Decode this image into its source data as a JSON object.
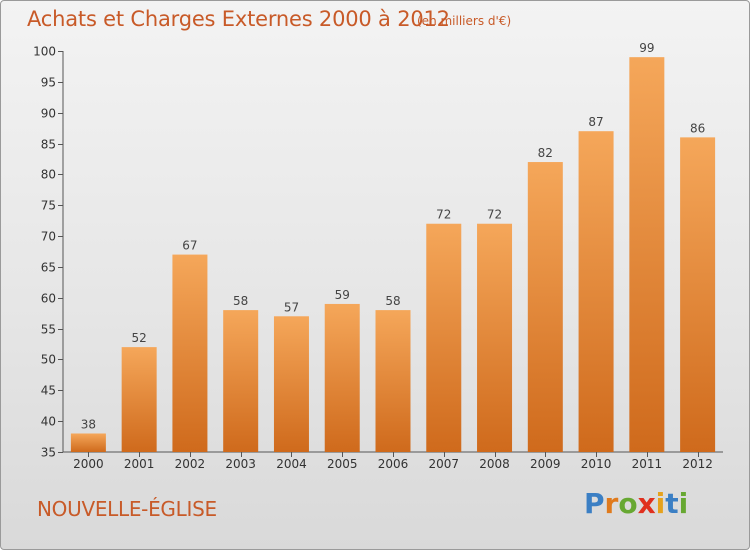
{
  "header": {
    "title": "Achats et Charges Externes 2000 à 2012",
    "unit": "(en milliers d'€)"
  },
  "footer": {
    "town": "NOUVELLE-ÉGLISE",
    "brand": "Proxiti"
  },
  "colors": {
    "title": "#c85a28",
    "bar_top": "#f5a75a",
    "bar_bottom": "#cf6a1c",
    "logo_letters": [
      "#3b7fc4",
      "#e07a1c",
      "#67a832",
      "#e0301e",
      "#e6a21c",
      "#3b7fc4",
      "#67a832"
    ]
  },
  "chart_data": {
    "type": "bar",
    "categories": [
      "2000",
      "2001",
      "2002",
      "2003",
      "2004",
      "2005",
      "2006",
      "2007",
      "2008",
      "2009",
      "2010",
      "2011",
      "2012"
    ],
    "values": [
      38,
      52,
      67,
      58,
      57,
      59,
      58,
      72,
      72,
      82,
      87,
      99,
      86
    ],
    "ylim": [
      35,
      100
    ],
    "yticks": [
      35,
      40,
      45,
      50,
      55,
      60,
      65,
      70,
      75,
      80,
      85,
      90,
      95,
      100
    ],
    "grid": false
  }
}
